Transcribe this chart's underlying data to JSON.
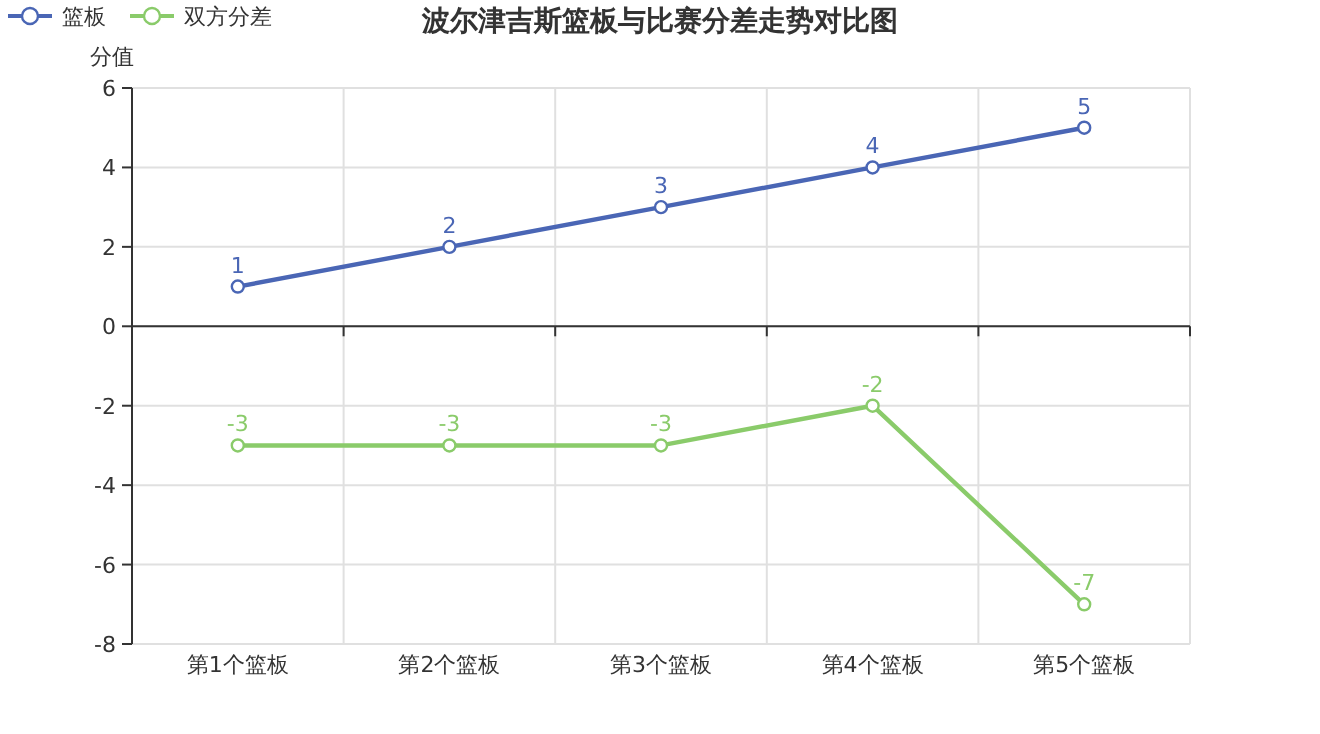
{
  "chart_data": {
    "type": "line",
    "title": "波尔津吉斯篮板与比赛分差走势对比图",
    "ylabel": "分值",
    "categories": [
      "第1个篮板",
      "第2个篮板",
      "第3个篮板",
      "第4个篮板",
      "第5个篮板"
    ],
    "series": [
      {
        "name": "篮板",
        "color": "#4a66b5",
        "values": [
          1,
          2,
          3,
          4,
          5
        ]
      },
      {
        "name": "双方分差",
        "color": "#8acb6a",
        "values": [
          -3,
          -3,
          -3,
          -2,
          -7
        ]
      }
    ],
    "ylim": [
      -8,
      6
    ],
    "yticks": [
      -8,
      -6,
      -4,
      -2,
      0,
      2,
      4,
      6
    ],
    "grid": true,
    "legend": "top left",
    "marker": "circle",
    "line_style": "solid",
    "data_labels": true
  }
}
